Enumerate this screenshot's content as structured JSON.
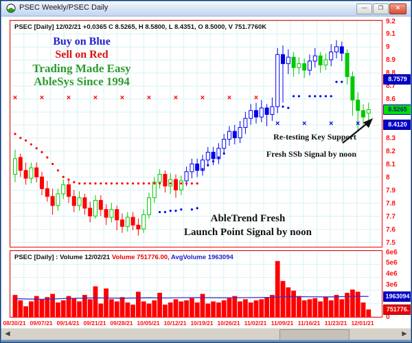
{
  "window": {
    "title": "PSEC Weekly/PSEC Daily",
    "controls": {
      "minimize": "—",
      "maximize": "❐",
      "close": "✕"
    }
  },
  "price_pane": {
    "header": "PSEC [Daily] 12/02/21  +0.0365 C 8.5265, H 8.5800, L 8.4351, O 8.5000, V 751.7760K",
    "annotations": {
      "buy": {
        "text": "Buy on Blue",
        "color": "#2222cc"
      },
      "sell": {
        "text": "Sell on Red",
        "color": "#dd1111"
      },
      "easy": {
        "text": "Trading Made Easy",
        "color": "#2e9b2e"
      },
      "ablesys": {
        "text": "AbleSys Since 1994",
        "color": "#2e9b2e"
      },
      "retest": {
        "text": "Re-testing Key Support",
        "color": "#111111"
      },
      "ssb": {
        "text": "Fresh SSb Signal by noon",
        "color": "#111111"
      },
      "launch_line1": {
        "text": "AbleTrend Fresh",
        "color": "#111111"
      },
      "launch_line2": {
        "text": "Launch Point Signal by noon",
        "color": "#111111"
      }
    },
    "axis_ticks": [
      {
        "label": "9.2",
        "value": 9.2
      },
      {
        "label": "9.1",
        "value": 9.1
      },
      {
        "label": "9",
        "value": 9.0
      },
      {
        "label": "8.9",
        "value": 8.9
      },
      {
        "label": "8.8",
        "value": 8.8
      },
      {
        "label": "8.7",
        "value": 8.7
      },
      {
        "label": "8.6",
        "value": 8.6
      },
      {
        "label": "8.3",
        "value": 8.3
      },
      {
        "label": "8.2",
        "value": 8.2
      },
      {
        "label": "8.1",
        "value": 8.1
      },
      {
        "label": "8",
        "value": 8.0
      },
      {
        "label": "7.9",
        "value": 7.9
      },
      {
        "label": "7.8",
        "value": 7.8
      },
      {
        "label": "7.7",
        "value": 7.7
      },
      {
        "label": "7.6",
        "value": 7.6
      },
      {
        "label": "7.5",
        "value": 7.5
      }
    ],
    "badges": [
      {
        "label": "8.7579",
        "value": 8.7579,
        "style": "blue"
      },
      {
        "label": "8.5265",
        "value": 8.5265,
        "style": "green"
      },
      {
        "label": "8.4120",
        "value": 8.412,
        "style": "blue"
      }
    ]
  },
  "volume_pane": {
    "header_left": "PSEC [Daily] : Volume 12/02/21 ",
    "header_volume": "Volume 751776.00, ",
    "header_avg": "AvgVolume 1963094",
    "axis_ticks": [
      {
        "label": "6e6",
        "value": 6
      },
      {
        "label": "5e6",
        "value": 5
      },
      {
        "label": "4e6",
        "value": 4
      },
      {
        "label": "3e6",
        "value": 3
      },
      {
        "label": "0",
        "value": 0
      }
    ],
    "badges": [
      {
        "label": "1963094",
        "value_millions": 1.963094,
        "style": "blue"
      },
      {
        "label": "751776.",
        "value_millions": 0.751776,
        "style": "red"
      }
    ]
  },
  "x_axis": {
    "dates": [
      "08/30/21",
      "09/07/21",
      "09/14/21",
      "09/21/21",
      "09/28/21",
      "10/05/21",
      "10/12/21",
      "10/19/21",
      "10/26/21",
      "11/02/21",
      "11/09/21",
      "11/16/21",
      "11/23/21",
      "12/01/21"
    ]
  },
  "scrollbar": {
    "left_glyph": "◄",
    "right_glyph": "►"
  },
  "chart_data": [
    {
      "type": "candlestick",
      "title": "PSEC [Daily] 12/02/21",
      "xlabel": "",
      "ylabel": "Price",
      "ylim": [
        7.5,
        9.2
      ],
      "grid": true,
      "colors": {
        "g": "#00c800",
        "r": "#ff0000",
        "b": "#0000ee"
      },
      "candle_format": [
        "open",
        "high",
        "low",
        "close",
        "color",
        "volume_millions"
      ],
      "candles": [
        [
          8.03,
          8.22,
          7.97,
          8.15,
          "g",
          2.1
        ],
        [
          8.16,
          8.19,
          8.01,
          8.06,
          "r",
          1.6
        ],
        [
          8.06,
          8.12,
          7.95,
          8.0,
          "r",
          1.05
        ],
        [
          8.0,
          8.12,
          7.96,
          8.08,
          "g",
          1.5
        ],
        [
          8.08,
          8.12,
          7.97,
          8.01,
          "r",
          2.0
        ],
        [
          8.01,
          8.05,
          7.87,
          7.92,
          "r",
          1.7
        ],
        [
          7.92,
          7.98,
          7.82,
          7.86,
          "r",
          1.9
        ],
        [
          7.86,
          7.92,
          7.72,
          7.79,
          "r",
          2.2
        ],
        [
          7.79,
          7.92,
          7.75,
          7.88,
          "g",
          1.4
        ],
        [
          7.88,
          7.99,
          7.84,
          7.95,
          "g",
          1.6
        ],
        [
          7.95,
          7.99,
          7.81,
          7.86,
          "r",
          2.0
        ],
        [
          7.86,
          7.91,
          7.74,
          7.79,
          "r",
          1.8
        ],
        [
          7.79,
          7.9,
          7.75,
          7.85,
          "g",
          1.5
        ],
        [
          7.85,
          7.88,
          7.72,
          7.77,
          "r",
          2.1
        ],
        [
          7.77,
          7.82,
          7.66,
          7.71,
          "r",
          1.7
        ],
        [
          7.71,
          7.87,
          7.69,
          7.83,
          "g",
          2.9
        ],
        [
          7.83,
          7.87,
          7.71,
          7.76,
          "r",
          1.3
        ],
        [
          7.76,
          7.8,
          7.64,
          7.7,
          "r",
          2.7
        ],
        [
          7.7,
          7.81,
          7.66,
          7.76,
          "g",
          1.7
        ],
        [
          7.76,
          7.79,
          7.6,
          7.68,
          "r",
          1.5
        ],
        [
          7.68,
          7.73,
          7.58,
          7.63,
          "r",
          1.9
        ],
        [
          7.63,
          7.74,
          7.59,
          7.7,
          "g",
          1.4
        ],
        [
          7.7,
          7.74,
          7.6,
          7.64,
          "r",
          1.2
        ],
        [
          7.64,
          7.69,
          7.56,
          7.61,
          "r",
          2.4
        ],
        [
          7.61,
          7.76,
          7.58,
          7.72,
          "g",
          1.5
        ],
        [
          7.72,
          7.89,
          7.69,
          7.85,
          "g",
          1.3
        ],
        [
          7.85,
          8.01,
          7.81,
          7.97,
          "g",
          1.6
        ],
        [
          7.97,
          8.07,
          7.92,
          8.03,
          "g",
          2.3
        ],
        [
          8.03,
          8.06,
          7.89,
          7.94,
          "r",
          1.2
        ],
        [
          7.94,
          8.04,
          7.88,
          7.99,
          "g",
          1.4
        ],
        [
          7.99,
          8.03,
          7.85,
          7.91,
          "r",
          1.7
        ],
        [
          7.91,
          8.02,
          7.87,
          7.98,
          "g",
          1.5
        ],
        [
          7.98,
          8.09,
          7.94,
          8.05,
          "b",
          1.6
        ],
        [
          8.05,
          8.15,
          8.0,
          8.11,
          "b",
          1.8
        ],
        [
          8.11,
          8.15,
          8.01,
          8.06,
          "b",
          1.4
        ],
        [
          8.06,
          8.18,
          8.02,
          8.14,
          "b",
          2.2
        ],
        [
          8.14,
          8.24,
          8.09,
          8.2,
          "b",
          1.3
        ],
        [
          8.2,
          8.24,
          8.1,
          8.15,
          "b",
          1.5
        ],
        [
          8.15,
          8.27,
          8.11,
          8.23,
          "b",
          1.4
        ],
        [
          8.23,
          8.34,
          8.18,
          8.3,
          "b",
          1.6
        ],
        [
          8.3,
          8.4,
          8.25,
          8.36,
          "b",
          1.8
        ],
        [
          8.36,
          8.41,
          8.26,
          8.31,
          "b",
          2.0
        ],
        [
          8.31,
          8.44,
          8.27,
          8.39,
          "b",
          1.5
        ],
        [
          8.39,
          8.51,
          8.34,
          8.46,
          "b",
          1.7
        ],
        [
          8.46,
          8.57,
          8.41,
          8.52,
          "b",
          1.4
        ],
        [
          8.52,
          8.58,
          8.42,
          8.47,
          "b",
          1.6
        ],
        [
          8.47,
          8.6,
          8.43,
          8.54,
          "b",
          1.7
        ],
        [
          8.54,
          8.57,
          8.4,
          8.49,
          "b",
          1.9
        ],
        [
          8.49,
          8.62,
          8.44,
          8.55,
          "b",
          2.1
        ],
        [
          8.55,
          9.0,
          8.5,
          8.95,
          "b",
          5.25
        ],
        [
          8.95,
          9.02,
          8.58,
          8.88,
          "b",
          3.4
        ],
        [
          8.88,
          8.99,
          8.8,
          8.93,
          "b",
          2.8
        ],
        [
          8.93,
          8.97,
          8.78,
          8.85,
          "g",
          2.5
        ],
        [
          8.85,
          8.93,
          8.8,
          8.88,
          "g",
          2.0
        ],
        [
          8.88,
          8.92,
          8.77,
          8.83,
          "g",
          1.6
        ],
        [
          8.83,
          8.95,
          8.79,
          8.9,
          "b",
          1.7
        ],
        [
          8.9,
          9.0,
          8.85,
          8.94,
          "b",
          1.8
        ],
        [
          8.94,
          8.97,
          8.81,
          8.87,
          "g",
          1.5
        ],
        [
          8.87,
          8.96,
          8.83,
          8.91,
          "g",
          1.9
        ],
        [
          8.91,
          9.03,
          8.86,
          8.97,
          "b",
          1.6
        ],
        [
          8.97,
          9.06,
          8.92,
          9.01,
          "b",
          2.1
        ],
        [
          9.01,
          9.05,
          8.9,
          8.96,
          "b",
          1.7
        ],
        [
          8.96,
          8.99,
          8.72,
          8.78,
          "g",
          2.3
        ],
        [
          8.78,
          8.82,
          8.48,
          8.6,
          "g",
          2.6
        ],
        [
          8.6,
          8.66,
          8.36,
          8.52,
          "g",
          2.4
        ],
        [
          8.52,
          8.57,
          8.41,
          8.47,
          "g",
          1.4
        ],
        [
          8.5,
          8.58,
          8.4351,
          8.5265,
          "g",
          0.752
        ]
      ],
      "markers": {
        "red_x": {
          "glyph": "×",
          "color": "#ff0000",
          "price": 8.62,
          "indices": [
            0,
            5,
            10,
            15,
            20,
            25,
            30,
            35,
            40,
            45
          ]
        },
        "blue_x": {
          "glyph": "×",
          "color": "#0000ee",
          "price": 8.42,
          "indices": [
            49,
            54,
            59,
            64
          ]
        },
        "red_dots": {
          "color": "#ff0000",
          "points": [
            [
              0,
              8.34
            ],
            [
              1,
              8.31
            ],
            [
              2,
              8.29
            ],
            [
              3,
              8.26
            ],
            [
              4,
              8.23
            ],
            [
              5,
              8.2
            ],
            [
              6,
              8.16
            ],
            [
              7,
              8.11
            ],
            [
              8,
              8.06
            ],
            [
              9,
              8.01
            ],
            [
              10,
              7.99
            ],
            [
              11,
              7.97
            ],
            [
              12,
              7.96
            ],
            [
              13,
              7.96
            ],
            [
              14,
              7.96
            ],
            [
              15,
              7.96
            ],
            [
              16,
              7.96
            ],
            [
              17,
              7.96
            ],
            [
              18,
              7.96
            ],
            [
              19,
              7.96
            ],
            [
              20,
              7.96
            ],
            [
              21,
              7.96
            ],
            [
              22,
              7.96
            ],
            [
              23,
              7.96
            ],
            [
              24,
              7.96
            ],
            [
              25,
              7.96
            ],
            [
              26,
              7.96
            ],
            [
              27,
              7.96
            ],
            [
              28,
              7.96
            ],
            [
              29,
              7.96
            ],
            [
              30,
              7.96
            ],
            [
              31,
              7.96
            ],
            [
              32,
              7.96
            ],
            [
              33,
              7.96
            ],
            [
              34,
              7.96
            ]
          ]
        },
        "blue_dots": {
          "color": "#0000ee",
          "points": [
            [
              27,
              7.74
            ],
            [
              28,
              7.74
            ],
            [
              29,
              7.75
            ],
            [
              30,
              7.75
            ],
            [
              31,
              7.76
            ],
            [
              33,
              7.76
            ],
            [
              34,
              7.77
            ],
            [
              35,
              8.07
            ],
            [
              36,
              8.1
            ],
            [
              37,
              8.13
            ],
            [
              38,
              8.16
            ],
            [
              39,
              8.19
            ],
            [
              50,
              8.55
            ],
            [
              51,
              8.54
            ],
            [
              52,
              8.63
            ],
            [
              53,
              8.63
            ],
            [
              55,
              8.63
            ],
            [
              56,
              8.63
            ],
            [
              57,
              8.63
            ],
            [
              58,
              8.63
            ],
            [
              59,
              8.63
            ],
            [
              60,
              8.74
            ],
            [
              61,
              8.74
            ]
          ]
        }
      },
      "last_price": 8.5265,
      "support_resistance_labels": [
        8.7579,
        8.5265,
        8.412
      ]
    },
    {
      "type": "bar",
      "title": "Volume",
      "bar_color": "#ff0000",
      "ylim_millions": [
        0,
        6
      ],
      "values_source": "candles volume_millions column",
      "avg_volume": 1963094,
      "last_volume": 751776,
      "avg_line_millions": [
        [
          0,
          1.75
        ],
        [
          5,
          1.7
        ],
        [
          10,
          1.78
        ],
        [
          15,
          1.83
        ],
        [
          20,
          1.8
        ],
        [
          25,
          1.84
        ],
        [
          28,
          1.82
        ],
        [
          33,
          1.86
        ],
        [
          38,
          1.84
        ],
        [
          43,
          1.85
        ],
        [
          48,
          1.88
        ],
        [
          51,
          1.95
        ],
        [
          55,
          1.93
        ],
        [
          59,
          1.92
        ],
        [
          63,
          1.97
        ],
        [
          66,
          1.963
        ]
      ]
    }
  ]
}
